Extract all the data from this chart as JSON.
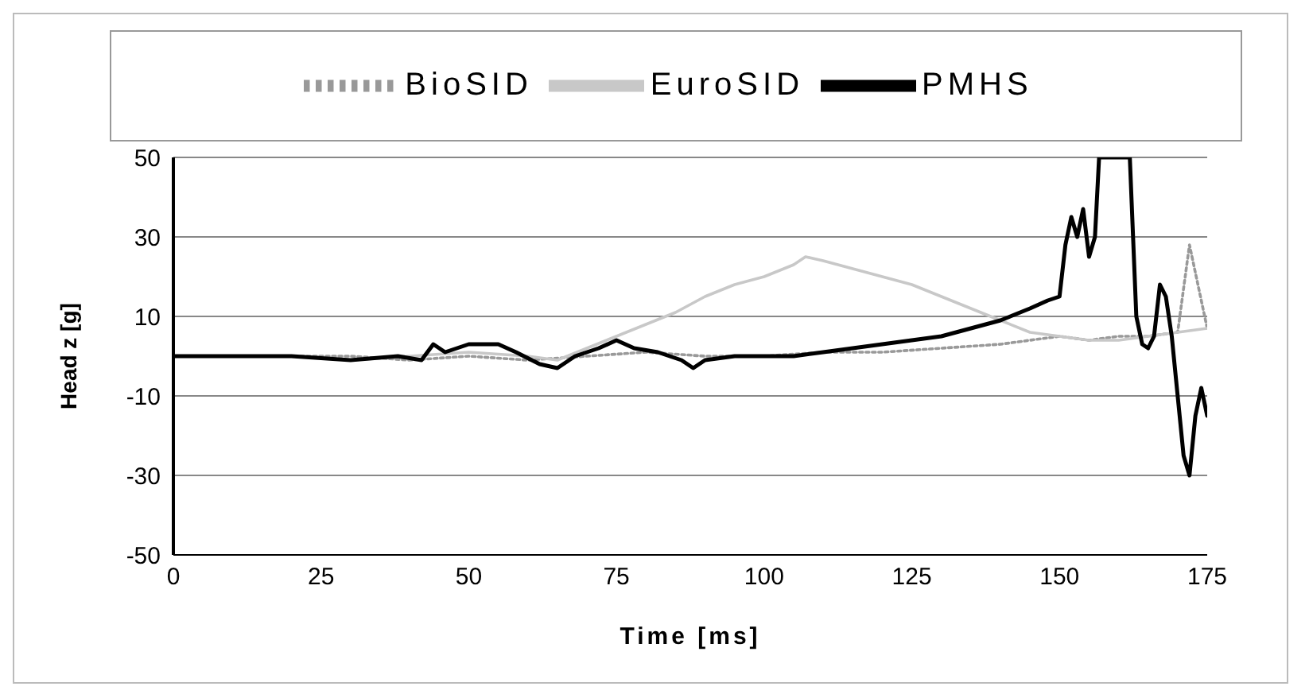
{
  "chart_data": {
    "type": "line",
    "xlabel": "Time [ms]",
    "ylabel": "Head z [g]",
    "xlim": [
      0,
      175
    ],
    "xticks": [
      0,
      25,
      50,
      75,
      100,
      125,
      150,
      175
    ],
    "ylim": [
      -50,
      50
    ],
    "yticks": [
      -50,
      -30,
      -10,
      10,
      30,
      50
    ],
    "grid": "y",
    "legend": "top",
    "marker": "none",
    "series": [
      {
        "name": "BioSID",
        "color": "#999999",
        "line_style": "dotted",
        "x": [
          0,
          10,
          20,
          30,
          40,
          50,
          60,
          70,
          80,
          90,
          100,
          110,
          120,
          130,
          140,
          145,
          150,
          155,
          160,
          165,
          170,
          172,
          175
        ],
        "values": [
          0,
          0,
          0,
          0,
          -1,
          0,
          -1,
          0,
          1,
          0,
          0,
          1,
          1,
          2,
          3,
          4,
          5,
          4,
          5,
          5,
          6,
          28,
          7
        ]
      },
      {
        "name": "EuroSID",
        "color": "#c8c8c8",
        "line_style": "solid",
        "x": [
          0,
          10,
          20,
          30,
          40,
          50,
          60,
          65,
          70,
          75,
          80,
          85,
          90,
          95,
          100,
          105,
          107,
          110,
          115,
          120,
          125,
          130,
          135,
          140,
          145,
          150,
          155,
          160,
          165,
          170,
          175
        ],
        "values": [
          0,
          0,
          0,
          -1,
          0,
          1,
          0,
          -1,
          2,
          5,
          8,
          11,
          15,
          18,
          20,
          23,
          25,
          24,
          22,
          20,
          18,
          15,
          12,
          9,
          6,
          5,
          4,
          4,
          5,
          6,
          7
        ]
      },
      {
        "name": "PMHS",
        "color": "#000000",
        "line_style": "solid",
        "x": [
          0,
          10,
          20,
          30,
          38,
          42,
          44,
          46,
          50,
          55,
          58,
          62,
          65,
          68,
          72,
          75,
          78,
          82,
          86,
          88,
          90,
          95,
          100,
          105,
          110,
          115,
          120,
          125,
          130,
          135,
          140,
          145,
          148,
          150,
          151,
          152,
          153,
          154,
          155,
          156,
          156.7,
          161.9,
          163,
          164,
          165,
          166,
          167,
          168,
          169,
          170,
          171,
          172,
          173,
          174,
          175
        ],
        "values": [
          0,
          0,
          0,
          -1,
          0,
          -1,
          3,
          1,
          3,
          3,
          1,
          -2,
          -3,
          0,
          2,
          4,
          2,
          1,
          -1,
          -3,
          -1,
          0,
          0,
          0,
          1,
          2,
          3,
          4,
          5,
          7,
          9,
          12,
          14,
          15,
          28,
          35,
          30,
          37,
          25,
          30,
          50,
          50,
          10,
          3,
          2,
          5,
          18,
          15,
          5,
          -10,
          -25,
          -30,
          -15,
          -8,
          -15
        ]
      }
    ]
  }
}
